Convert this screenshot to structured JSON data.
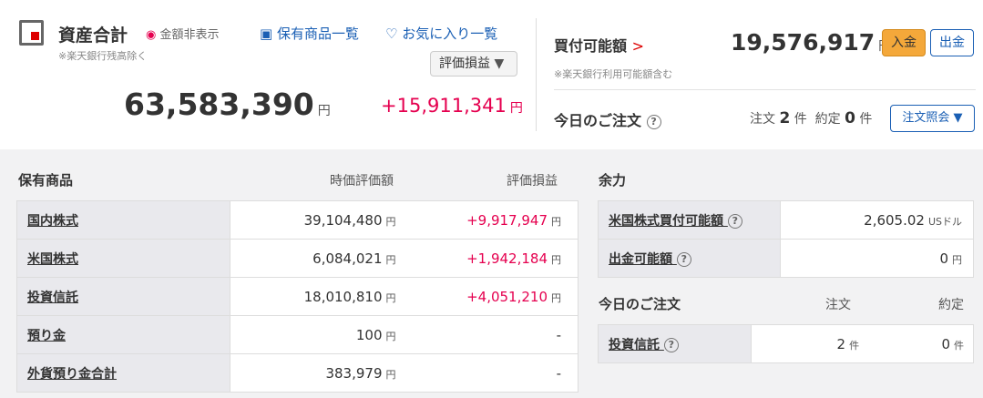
{
  "assets": {
    "title": "資産合計",
    "hide_label": "金額非表示",
    "note": "※楽天銀行残高除く",
    "holdings_link": "保有商品一覧",
    "favorites_link": "お気に入り一覧",
    "select": "評価損益",
    "total": "63,583,390",
    "total_unit": "円",
    "pl": "+15,911,341",
    "pl_unit": "円"
  },
  "buying": {
    "title": "買付可能額",
    "amount": "19,576,917",
    "unit": "円",
    "deposit": "入金",
    "withdraw": "出金",
    "note": "※楽天銀行利用可能額含む"
  },
  "today": {
    "title": "今日のご注文",
    "order_label": "注文",
    "order_count": "2",
    "ken": "件",
    "exec_label": "約定",
    "exec_count": "0",
    "ken2": "件",
    "inquiry": "注文照会 ▼"
  },
  "holdings": {
    "headers": [
      "保有商品",
      "時価評価額",
      "評価損益"
    ],
    "unit": "円",
    "rows": [
      {
        "name": "国内株式",
        "value": "39,104,480",
        "pl": "+9,917,947"
      },
      {
        "name": "米国株式",
        "value": "6,084,021",
        "pl": "+1,942,184"
      },
      {
        "name": "投資信託",
        "value": "18,010,810",
        "pl": "+4,051,210"
      },
      {
        "name": "預り金",
        "value": "100",
        "pl": "-"
      },
      {
        "name": "外貨預り金合計",
        "value": "383,979",
        "pl": "-"
      }
    ]
  },
  "yoryoku": {
    "title": "余力",
    "rows": [
      {
        "name": "米国株式買付可能額",
        "value": "2,605.02",
        "unit": "USドル"
      },
      {
        "name": "出金可能額",
        "value": "0",
        "unit": "円"
      }
    ]
  },
  "today_table": {
    "title": "今日のご注文",
    "headers": [
      "注文",
      "約定"
    ],
    "row": {
      "name": "投資信託",
      "orders": "2",
      "execs": "0",
      "unit": "件"
    }
  },
  "colors": {
    "accent": "#1a5fb4",
    "profit": "#e5004f",
    "deposit": "#f4a83a"
  }
}
